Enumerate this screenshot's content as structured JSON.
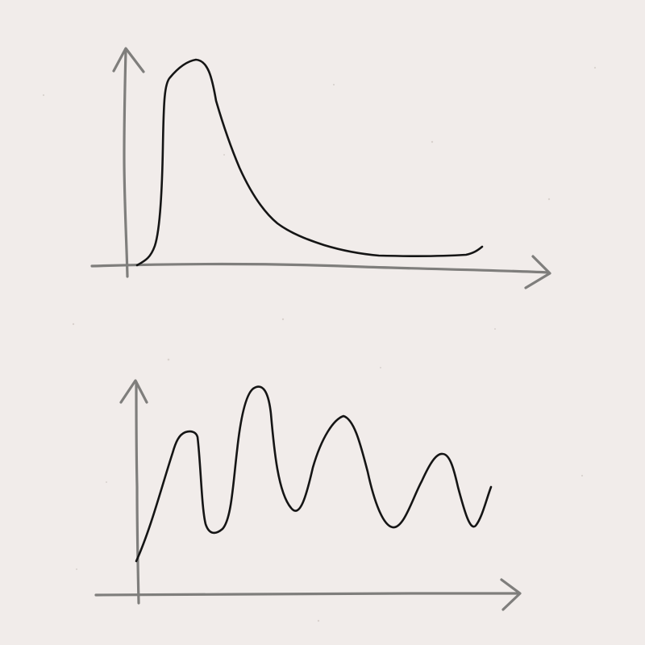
{
  "colors": {
    "paper": "#f1ecea",
    "axis": "#7f7e7c",
    "curve": "#151515"
  },
  "sketches": [
    {
      "name": "single-peak-decay",
      "description_shape": "sharp rise to one peak followed by long decaying tail"
    },
    {
      "name": "oscillating-wave",
      "description_shape": "rise into repeated oscillating peaks and troughs"
    }
  ]
}
